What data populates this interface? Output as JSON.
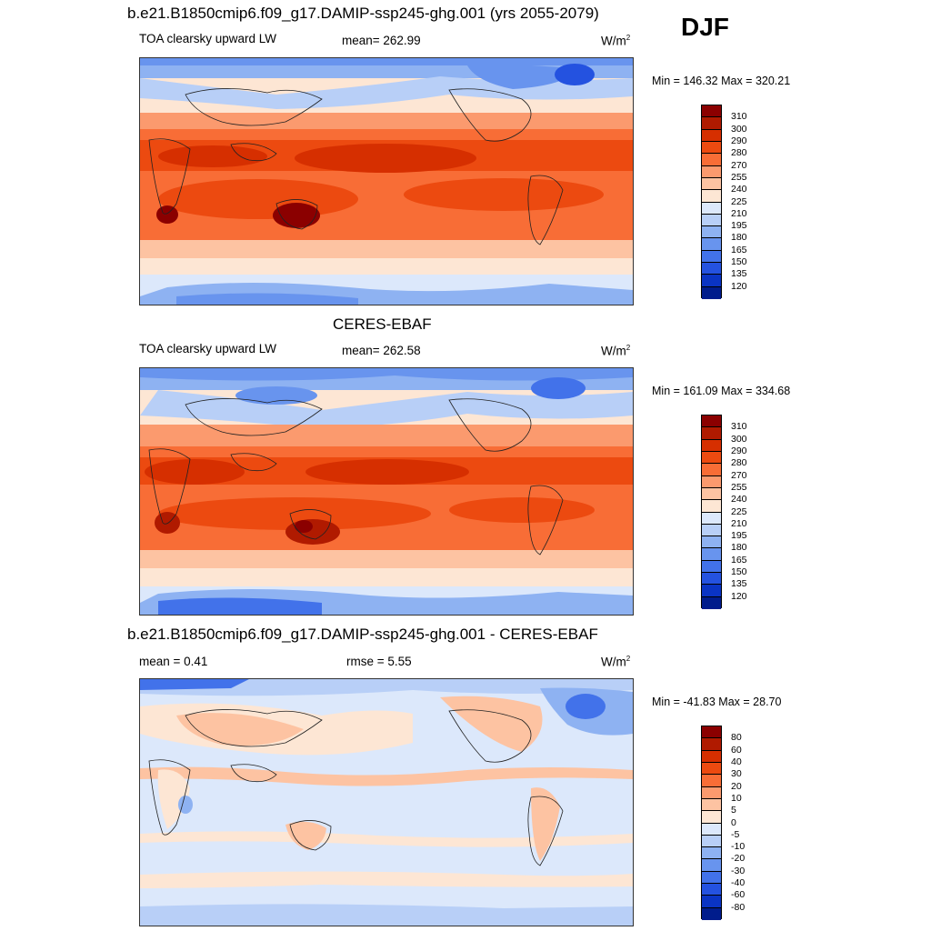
{
  "season": "DJF",
  "panels": [
    {
      "title": "b.e21.B1850cmip6.f09_g17.DAMIP-ssp245-ghg.001 (yrs 2055-2079)",
      "left_label": "TOA clearsky upward LW",
      "center_label": "mean= 262.99",
      "units_base": "W/m",
      "units_exp": "2",
      "minmax": "Min = 146.32 Max = 320.21",
      "colorbar_labels": [
        "310",
        "300",
        "290",
        "280",
        "270",
        "255",
        "240",
        "225",
        "210",
        "195",
        "180",
        "165",
        "150",
        "135",
        "120"
      ],
      "colorbar_colors": [
        "#8b0000",
        "#b01a00",
        "#d62f00",
        "#ec4a10",
        "#f86d36",
        "#fb9a6e",
        "#fdc3a2",
        "#fde6d4",
        "#dce8fb",
        "#b8cff7",
        "#8eb2f2",
        "#6894ee",
        "#4272ea",
        "#2452e0",
        "#0a34c4",
        "#001c8c"
      ]
    },
    {
      "title": "CERES-EBAF",
      "left_label": "TOA clearsky upward LW",
      "center_label": "mean= 262.58",
      "units_base": "W/m",
      "units_exp": "2",
      "minmax": "Min = 161.09 Max = 334.68",
      "colorbar_labels": [
        "310",
        "300",
        "290",
        "280",
        "270",
        "255",
        "240",
        "225",
        "210",
        "195",
        "180",
        "165",
        "150",
        "135",
        "120"
      ],
      "colorbar_colors": [
        "#8b0000",
        "#b01a00",
        "#d62f00",
        "#ec4a10",
        "#f86d36",
        "#fb9a6e",
        "#fdc3a2",
        "#fde6d4",
        "#dce8fb",
        "#b8cff7",
        "#8eb2f2",
        "#6894ee",
        "#4272ea",
        "#2452e0",
        "#0a34c4",
        "#001c8c"
      ]
    },
    {
      "title": "b.e21.B1850cmip6.f09_g17.DAMIP-ssp245-ghg.001 - CERES-EBAF",
      "left_label": "mean =   0.41",
      "center_label": "rmse =   5.55",
      "units_base": "W/m",
      "units_exp": "2",
      "minmax": "Min = -41.83 Max =  28.70",
      "colorbar_labels": [
        "80",
        "60",
        "40",
        "30",
        "20",
        "10",
        "5",
        "0",
        "-5",
        "-10",
        "-20",
        "-30",
        "-40",
        "-60",
        "-80"
      ],
      "colorbar_colors": [
        "#8b0000",
        "#b01a00",
        "#d62f00",
        "#ec4a10",
        "#f86d36",
        "#fb9a6e",
        "#fdc3a2",
        "#fde6d4",
        "#dce8fb",
        "#b8cff7",
        "#8eb2f2",
        "#6894ee",
        "#4272ea",
        "#2452e0",
        "#0a34c4",
        "#001c8c"
      ]
    }
  ]
}
